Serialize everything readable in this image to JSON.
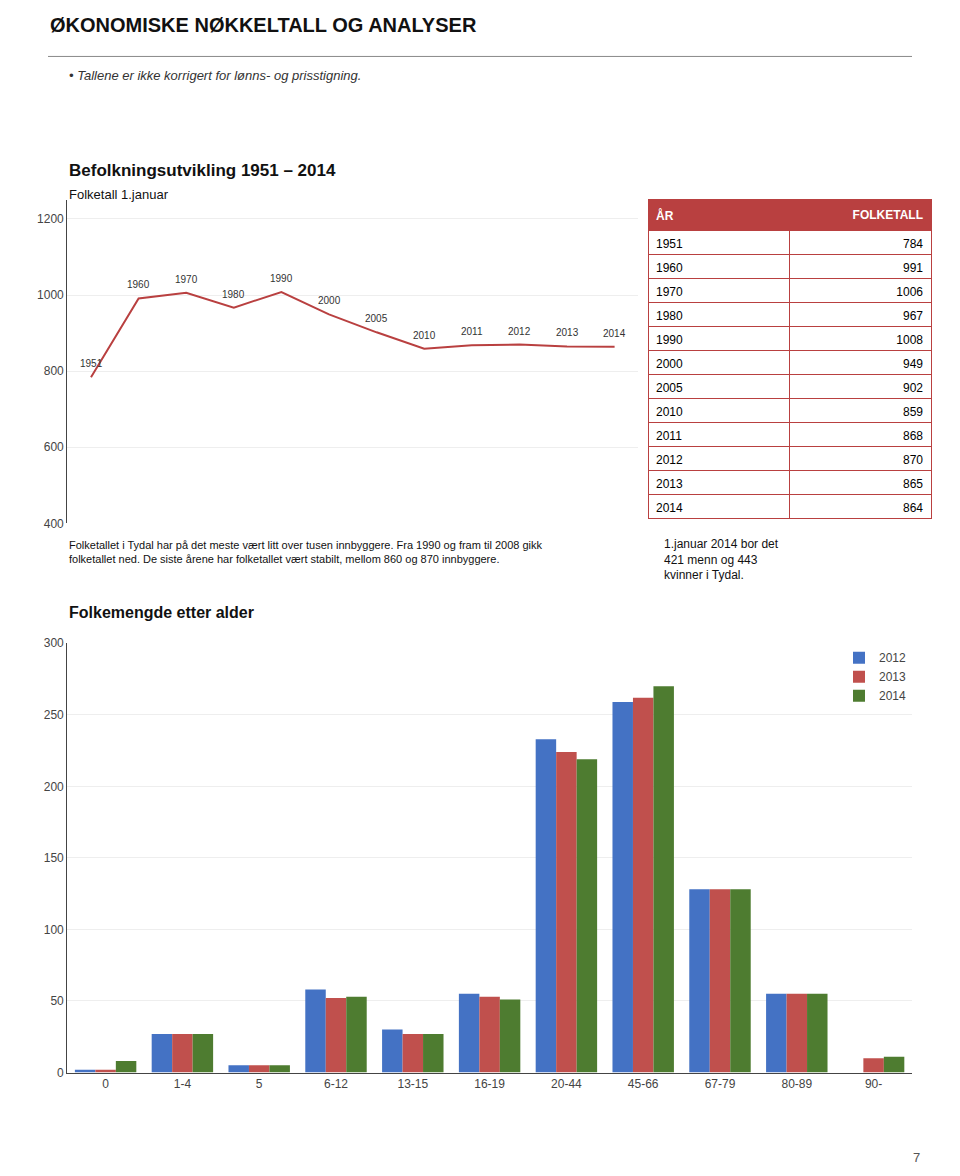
{
  "title": "ØKONOMISKE NØKKELTALL OG ANALYSER",
  "subtitle": "• Tallene er ikke korrigert for lønns- og prisstigning.",
  "annotations": [
    "Folketallet i Tydal har på det meste vært litt over tusen innbyggere. Fra 1990 og fram til 2008 gikk\nfolketallet ned. De siste årene har folketallet vært stabilt, mellom 860 og 870 innbyggere.",
    "7"
  ],
  "chart_data": [
    {
      "type": "line",
      "title": "Befolkningsutvikling 1951 – 2014",
      "subtitle": "Folketall 1.januar",
      "categories": [
        "1951",
        "1960",
        "1970",
        "1980",
        "1990",
        "2000",
        "2005",
        "2010",
        "2011",
        "2012",
        "2013",
        "2014"
      ],
      "values": [
        784,
        991,
        1006,
        967,
        1008,
        949,
        902,
        859,
        868,
        870,
        865,
        864
      ],
      "annotations": [
        "1951",
        "1960",
        "1970",
        "1980",
        "1990",
        "2000",
        "2005",
        "2010",
        "2011",
        "2012",
        "2013",
        "2014"
      ],
      "color": "#b94040",
      "ylim": [
        400,
        1250
      ],
      "yticks": [
        400,
        600,
        800,
        1000,
        1200
      ],
      "grid": true,
      "tick_labels": "y"
    },
    {
      "type": "table",
      "columns": [
        "ÅR",
        "FOLKETALL"
      ],
      "categories": [
        "1951",
        "1960",
        "1970",
        "1980",
        "1990",
        "2000",
        "2005",
        "2010",
        "2011",
        "2012",
        "2013",
        "2014"
      ],
      "values": [
        784,
        991,
        1006,
        967,
        1008,
        949,
        902,
        859,
        868,
        870,
        865,
        864
      ],
      "color": "#b94040",
      "annotations": [
        "1.januar 2014 bor det\n421 menn og 443\nkvinner i Tydal."
      ]
    },
    {
      "type": "bar",
      "title": "Folkemengde etter alder",
      "categories": [
        "0",
        "1-4",
        "5",
        "6-12",
        "13-15",
        "16-19",
        "20-44",
        "45-66",
        "67-79",
        "80-89",
        "90-"
      ],
      "series": [
        {
          "name": "2012",
          "color": "#4472c4",
          "values": [
            2,
            27,
            5,
            58,
            30,
            55,
            233,
            259,
            128,
            55,
            0
          ]
        },
        {
          "name": "2013",
          "color": "#c0504d",
          "values": [
            2,
            27,
            5,
            52,
            27,
            53,
            224,
            262,
            128,
            55,
            10
          ]
        },
        {
          "name": "2014",
          "color": "#4e7c30",
          "values": [
            8,
            27,
            5,
            53,
            27,
            51,
            219,
            270,
            128,
            55,
            11
          ]
        }
      ],
      "ylim": [
        0,
        300
      ],
      "yticks": [
        0,
        50,
        100,
        150,
        200,
        250,
        300
      ],
      "grid": true,
      "legend": "upper right"
    }
  ]
}
